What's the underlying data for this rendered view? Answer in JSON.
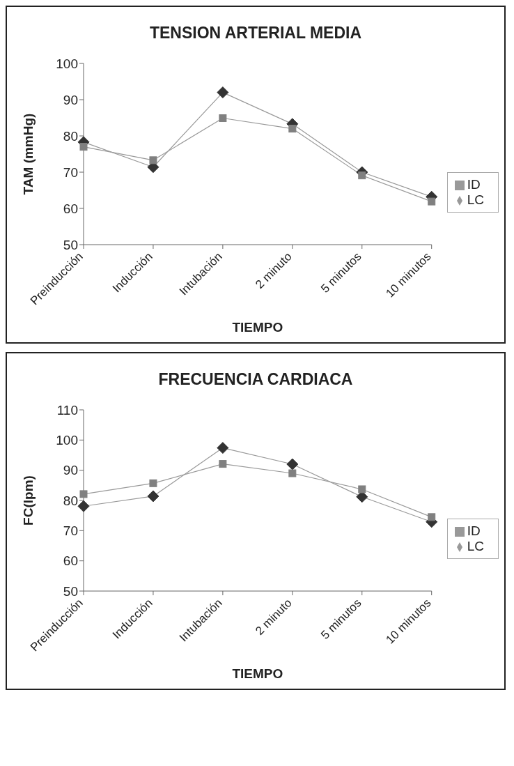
{
  "chart_data": [
    {
      "type": "line",
      "title": "TENSION ARTERIAL MEDIA",
      "xlabel": "TIEMPO",
      "ylabel": "TAM (mmHg)",
      "categories": [
        "Preinducción",
        "Inducción",
        "Intubación",
        "2 minuto",
        "5 minutos",
        "10 minutos"
      ],
      "ylim": [
        50,
        100
      ],
      "yticks": [
        50,
        60,
        70,
        80,
        90,
        100
      ],
      "legend": "right",
      "grid": false,
      "series": [
        {
          "name": "LC",
          "color": "#333333",
          "marker": "diamond",
          "values": [
            78.3,
            71.4,
            92,
            83.3,
            70,
            63.2
          ]
        },
        {
          "name": "ID",
          "color": "#808080",
          "marker": "square",
          "values": [
            77,
            73.3,
            84.9,
            82,
            69.1,
            61.9
          ]
        }
      ]
    },
    {
      "type": "line",
      "title": "FRECUENCIA CARDIACA",
      "xlabel": "TIEMPO",
      "ylabel": "FC(lpm)",
      "categories": [
        "Preinducción",
        "Inducción",
        "Intubación",
        "2 minuto",
        "5 minutos",
        "10 minutos"
      ],
      "ylim": [
        50,
        110
      ],
      "yticks": [
        50,
        60,
        70,
        80,
        90,
        100,
        110
      ],
      "legend": "right",
      "grid": false,
      "series": [
        {
          "name": "LC",
          "color": "#333333",
          "marker": "diamond",
          "values": [
            78.1,
            81.4,
            97.4,
            92,
            81.2,
            72.9
          ]
        },
        {
          "name": "ID",
          "color": "#808080",
          "marker": "square",
          "values": [
            82.1,
            85.7,
            92.1,
            89,
            83.7,
            74.5
          ]
        }
      ]
    }
  ]
}
